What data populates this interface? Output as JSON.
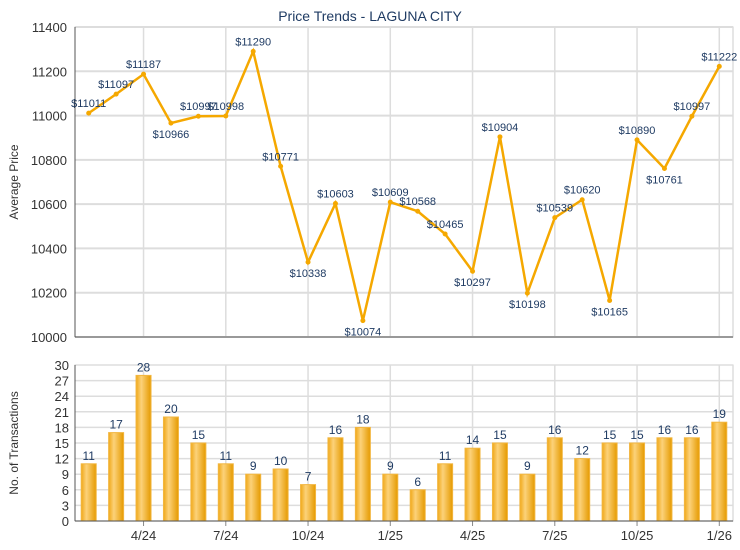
{
  "chart_data": [
    {
      "type": "line",
      "title": "Price Trends - LAGUNA CITY",
      "ylabel": "Average Price",
      "ylim": [
        10000,
        11400
      ],
      "yticks": [
        10000,
        10200,
        10400,
        10600,
        10800,
        11000,
        11200,
        11400
      ],
      "value_prefix": "$",
      "values": [
        11011,
        11097,
        11187,
        10966,
        10997,
        10998,
        11290,
        10771,
        10338,
        10603,
        10074,
        10609,
        10568,
        10465,
        10297,
        10904,
        10198,
        10539,
        10620,
        10165,
        10890,
        10761,
        10997,
        11222
      ],
      "color": "#f5a800"
    },
    {
      "type": "bar",
      "ylabel": "No. of Transactions",
      "ylim": [
        0,
        30
      ],
      "yticks": [
        0,
        3,
        6,
        9,
        12,
        15,
        18,
        21,
        24,
        27,
        30
      ],
      "values": [
        11,
        17,
        28,
        20,
        15,
        11,
        9,
        10,
        7,
        16,
        18,
        9,
        6,
        11,
        14,
        15,
        9,
        16,
        12,
        15,
        15,
        16,
        16,
        19
      ],
      "x_tick_labels": [
        {
          "index": 2,
          "label": "4/24"
        },
        {
          "index": 5,
          "label": "7/24"
        },
        {
          "index": 8,
          "label": "10/24"
        },
        {
          "index": 11,
          "label": "1/25"
        },
        {
          "index": 14,
          "label": "4/25"
        },
        {
          "index": 17,
          "label": "7/25"
        },
        {
          "index": 20,
          "label": "10/25"
        },
        {
          "index": 23,
          "label": "1/26"
        }
      ],
      "color": "#f5b300"
    }
  ]
}
